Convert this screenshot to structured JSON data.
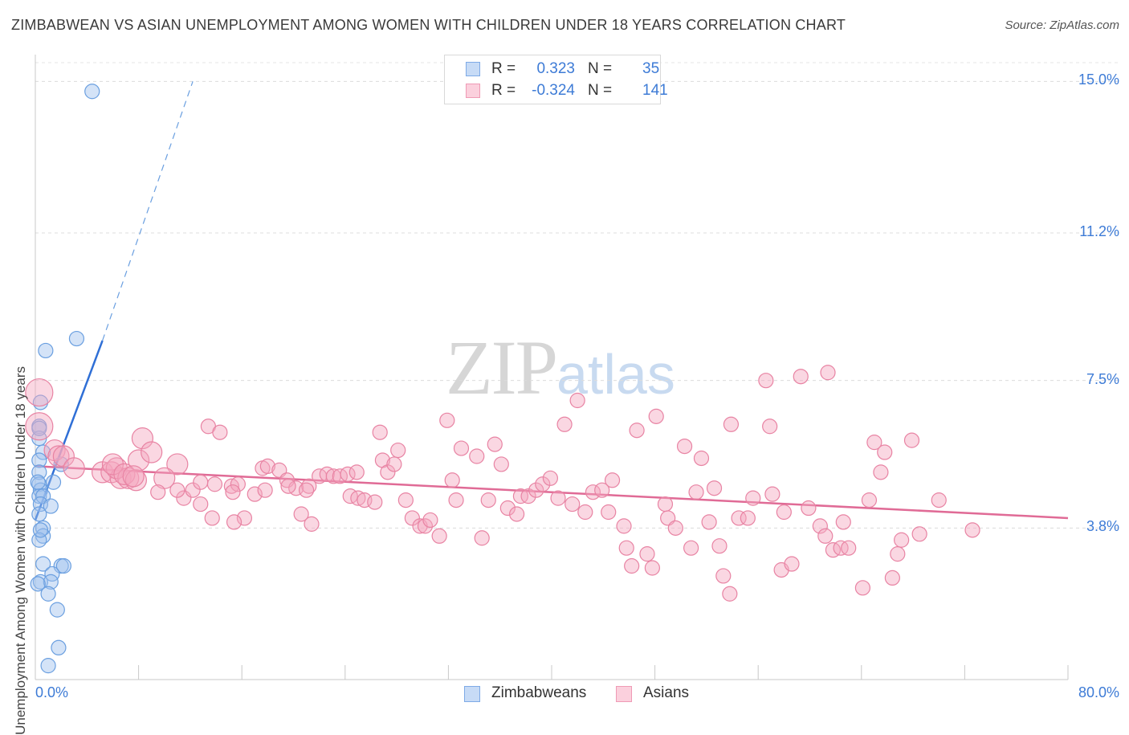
{
  "header": {
    "title": "ZIMBABWEAN VS ASIAN UNEMPLOYMENT AMONG WOMEN WITH CHILDREN UNDER 18 YEARS CORRELATION CHART",
    "source": "Source: ZipAtlas.com"
  },
  "legend": {
    "rows": [
      {
        "r_label": "R =",
        "r_value": "0.323",
        "n_label": "N =",
        "n_value": "35",
        "color": "#9fc2ee"
      },
      {
        "r_label": "R =",
        "r_value": "-0.324",
        "n_label": "N =",
        "n_value": "141",
        "color": "#f3a7bf"
      }
    ],
    "series": [
      {
        "name": "Zimbabweans",
        "color": "#9fc2ee"
      },
      {
        "name": "Asians",
        "color": "#f3a7bf"
      }
    ]
  },
  "watermark": {
    "zip": "ZIP",
    "atlas": "atlas"
  },
  "chart_data": {
    "type": "scatter",
    "title": "ZIMBABWEAN VS ASIAN UNEMPLOYMENT AMONG WOMEN WITH CHILDREN UNDER 18 YEARS CORRELATION CHART",
    "xlabel": "",
    "ylabel": "Unemployment Among Women with Children Under 18 years",
    "xlim": [
      0,
      80
    ],
    "ylim": [
      0,
      15.5
    ],
    "x_tick_labels": [
      "0.0%",
      "80.0%"
    ],
    "y_ticks": [
      3.8,
      7.5,
      11.2,
      15.0
    ],
    "y_tick_labels": [
      "3.8%",
      "7.5%",
      "11.2%",
      "15.0%"
    ],
    "grid": true,
    "series": [
      {
        "name": "Zimbabweans",
        "color": "#9fc2ee",
        "stroke": "#6a9fe0",
        "trend": {
          "x": [
            0,
            5.2
          ],
          "y": [
            4.0,
            8.5
          ],
          "dashed_to": [
            12.2,
            15.0
          ]
        },
        "points": [
          [
            4.4,
            14.75
          ],
          [
            3.2,
            8.55
          ],
          [
            0.8,
            8.25
          ],
          [
            0.4,
            6.95
          ],
          [
            0.3,
            6.35
          ],
          [
            0.3,
            6.05
          ],
          [
            0.6,
            5.7
          ],
          [
            0.3,
            5.5
          ],
          [
            2.0,
            5.4
          ],
          [
            0.3,
            5.2
          ],
          [
            0.3,
            4.9
          ],
          [
            0.4,
            4.75
          ],
          [
            0.3,
            4.6
          ],
          [
            0.6,
            4.6
          ],
          [
            0.4,
            4.4
          ],
          [
            1.2,
            4.35
          ],
          [
            0.3,
            4.15
          ],
          [
            0.6,
            3.8
          ],
          [
            0.6,
            3.6
          ],
          [
            0.3,
            3.5
          ],
          [
            0.6,
            2.9
          ],
          [
            2.0,
            2.85
          ],
          [
            2.2,
            2.85
          ],
          [
            1.3,
            2.65
          ],
          [
            0.4,
            2.45
          ],
          [
            1.2,
            2.45
          ],
          [
            1.0,
            2.15
          ],
          [
            1.7,
            1.75
          ],
          [
            1.8,
            0.8
          ],
          [
            1.0,
            0.35
          ],
          [
            0.3,
            6.3
          ],
          [
            0.2,
            4.95
          ],
          [
            0.4,
            3.75
          ],
          [
            0.2,
            2.4
          ],
          [
            1.4,
            4.95
          ]
        ]
      },
      {
        "name": "Asians",
        "color": "#f3a7bf",
        "stroke": "#e883a3",
        "trend": {
          "x": [
            0,
            80
          ],
          "y": [
            5.35,
            4.05
          ]
        },
        "points": [
          [
            0.3,
            7.2
          ],
          [
            0.3,
            6.35
          ],
          [
            1.5,
            5.75
          ],
          [
            1.8,
            5.6
          ],
          [
            2.2,
            5.6
          ],
          [
            3.0,
            5.3
          ],
          [
            5.2,
            5.2
          ],
          [
            5.9,
            5.2
          ],
          [
            6.6,
            5.05
          ],
          [
            6.3,
            5.3
          ],
          [
            7.2,
            5.05
          ],
          [
            6.0,
            5.4
          ],
          [
            6.9,
            5.15
          ],
          [
            7.8,
            5.0
          ],
          [
            11.0,
            5.4
          ],
          [
            8.3,
            6.05
          ],
          [
            8.0,
            5.5
          ],
          [
            7.6,
            5.1
          ],
          [
            9.0,
            5.7
          ],
          [
            10.0,
            5.05
          ],
          [
            13.4,
            6.35
          ],
          [
            14.3,
            6.2
          ],
          [
            9.5,
            4.7
          ],
          [
            11.5,
            4.55
          ],
          [
            11.0,
            4.75
          ],
          [
            12.2,
            4.75
          ],
          [
            12.8,
            4.4
          ],
          [
            13.7,
            4.05
          ],
          [
            12.8,
            4.95
          ],
          [
            13.9,
            4.9
          ],
          [
            15.2,
            4.85
          ],
          [
            15.7,
            4.9
          ],
          [
            15.3,
            4.7
          ],
          [
            16.2,
            4.05
          ],
          [
            15.4,
            3.95
          ],
          [
            17.0,
            4.65
          ],
          [
            17.6,
            5.3
          ],
          [
            18.0,
            5.35
          ],
          [
            17.8,
            4.75
          ],
          [
            18.9,
            5.25
          ],
          [
            19.5,
            5.0
          ],
          [
            20.2,
            4.8
          ],
          [
            19.6,
            4.85
          ],
          [
            21.2,
            4.85
          ],
          [
            21.0,
            4.75
          ],
          [
            20.6,
            4.15
          ],
          [
            21.4,
            3.9
          ],
          [
            22.0,
            5.1
          ],
          [
            22.6,
            5.15
          ],
          [
            23.1,
            5.1
          ],
          [
            23.6,
            5.1
          ],
          [
            24.2,
            5.15
          ],
          [
            24.4,
            4.6
          ],
          [
            25.0,
            4.55
          ],
          [
            25.5,
            4.5
          ],
          [
            24.9,
            5.2
          ],
          [
            26.3,
            4.45
          ],
          [
            26.9,
            5.5
          ],
          [
            26.7,
            6.2
          ],
          [
            27.3,
            5.2
          ],
          [
            27.8,
            5.4
          ],
          [
            28.1,
            5.75
          ],
          [
            28.7,
            4.5
          ],
          [
            29.2,
            4.05
          ],
          [
            29.8,
            3.85
          ],
          [
            30.2,
            3.85
          ],
          [
            30.6,
            4.0
          ],
          [
            31.3,
            3.6
          ],
          [
            32.6,
            4.5
          ],
          [
            32.3,
            5.0
          ],
          [
            31.9,
            6.5
          ],
          [
            33.0,
            5.8
          ],
          [
            34.2,
            5.6
          ],
          [
            34.6,
            3.55
          ],
          [
            35.1,
            4.5
          ],
          [
            35.6,
            5.9
          ],
          [
            36.1,
            5.4
          ],
          [
            36.6,
            4.3
          ],
          [
            37.3,
            4.15
          ],
          [
            37.6,
            4.6
          ],
          [
            38.2,
            4.6
          ],
          [
            38.8,
            4.75
          ],
          [
            39.3,
            4.9
          ],
          [
            39.9,
            5.05
          ],
          [
            40.5,
            4.55
          ],
          [
            41.6,
            4.4
          ],
          [
            41.0,
            6.4
          ],
          [
            42.0,
            7.0
          ],
          [
            42.6,
            4.2
          ],
          [
            43.2,
            4.7
          ],
          [
            43.9,
            4.75
          ],
          [
            44.4,
            4.2
          ],
          [
            44.7,
            5.0
          ],
          [
            45.6,
            3.85
          ],
          [
            45.8,
            3.3
          ],
          [
            46.2,
            2.85
          ],
          [
            46.6,
            6.25
          ],
          [
            47.4,
            3.15
          ],
          [
            47.8,
            2.8
          ],
          [
            48.1,
            6.6
          ],
          [
            48.8,
            4.4
          ],
          [
            49.0,
            4.05
          ],
          [
            49.6,
            3.8
          ],
          [
            50.3,
            5.85
          ],
          [
            50.8,
            3.3
          ],
          [
            51.2,
            4.7
          ],
          [
            51.6,
            5.55
          ],
          [
            52.6,
            4.8
          ],
          [
            52.2,
            3.95
          ],
          [
            53.0,
            3.35
          ],
          [
            53.3,
            2.6
          ],
          [
            53.8,
            2.15
          ],
          [
            53.9,
            6.4
          ],
          [
            54.5,
            4.05
          ],
          [
            55.2,
            4.05
          ],
          [
            55.6,
            4.55
          ],
          [
            56.6,
            7.5
          ],
          [
            56.9,
            6.35
          ],
          [
            57.1,
            4.65
          ],
          [
            57.8,
            2.75
          ],
          [
            58.0,
            4.2
          ],
          [
            58.6,
            2.9
          ],
          [
            59.3,
            7.6
          ],
          [
            59.9,
            4.3
          ],
          [
            60.8,
            3.85
          ],
          [
            61.2,
            3.6
          ],
          [
            61.8,
            3.25
          ],
          [
            62.4,
            3.3
          ],
          [
            62.6,
            3.95
          ],
          [
            63.0,
            3.3
          ],
          [
            64.1,
            2.3
          ],
          [
            65.0,
            5.95
          ],
          [
            65.5,
            5.2
          ],
          [
            65.8,
            5.7
          ],
          [
            66.4,
            2.55
          ],
          [
            66.8,
            3.15
          ],
          [
            67.1,
            3.5
          ],
          [
            67.9,
            6.0
          ],
          [
            68.5,
            3.65
          ],
          [
            70.0,
            4.5
          ],
          [
            72.6,
            3.75
          ],
          [
            61.4,
            7.7
          ],
          [
            64.6,
            4.5
          ]
        ]
      }
    ]
  }
}
